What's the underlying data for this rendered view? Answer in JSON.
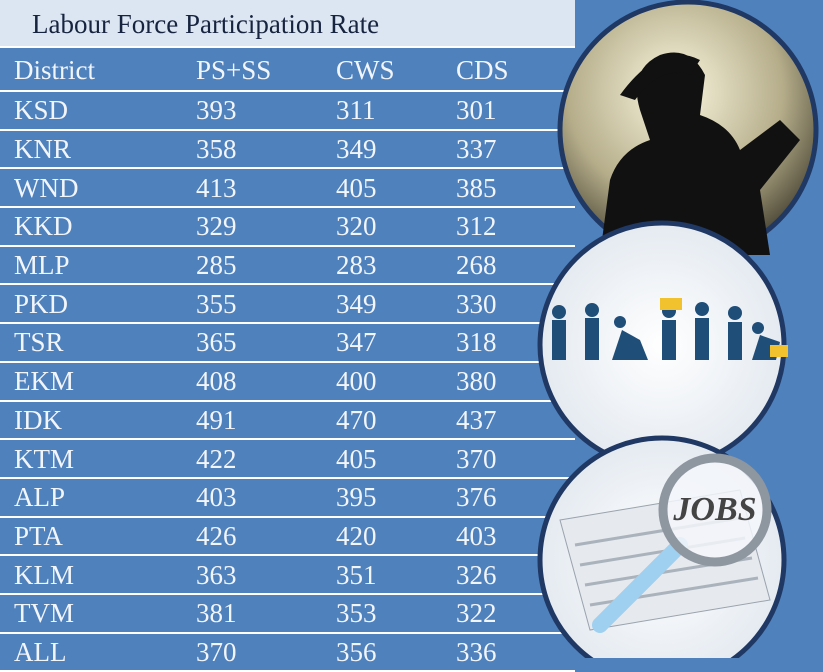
{
  "title": "Labour Force Participation Rate",
  "table": {
    "header": [
      "District",
      "PS+SS",
      "CWS",
      "CDS"
    ],
    "rows": [
      [
        "KSD",
        "393",
        "311",
        "301"
      ],
      [
        "KNR",
        "358",
        "349",
        "337"
      ],
      [
        "WND",
        "413",
        "405",
        "385"
      ],
      [
        "KKD",
        "329",
        "320",
        "312"
      ],
      [
        "MLP",
        "285",
        "283",
        "268"
      ],
      [
        "PKD",
        "355",
        "349",
        "330"
      ],
      [
        "TSR",
        "365",
        "347",
        "318"
      ],
      [
        "EKM",
        "408",
        "400",
        "380"
      ],
      [
        "IDK",
        "491",
        "470",
        "437"
      ],
      [
        "KTM",
        "422",
        "405",
        "370"
      ],
      [
        "ALP",
        "403",
        "395",
        "376"
      ],
      [
        "PTA",
        "426",
        "420",
        "403"
      ],
      [
        "KLM",
        "363",
        "351",
        "326"
      ],
      [
        "TVM",
        "381",
        "353",
        "322"
      ],
      [
        "ALL",
        "370",
        "356",
        "336"
      ]
    ]
  },
  "image_text": "JOBS"
}
